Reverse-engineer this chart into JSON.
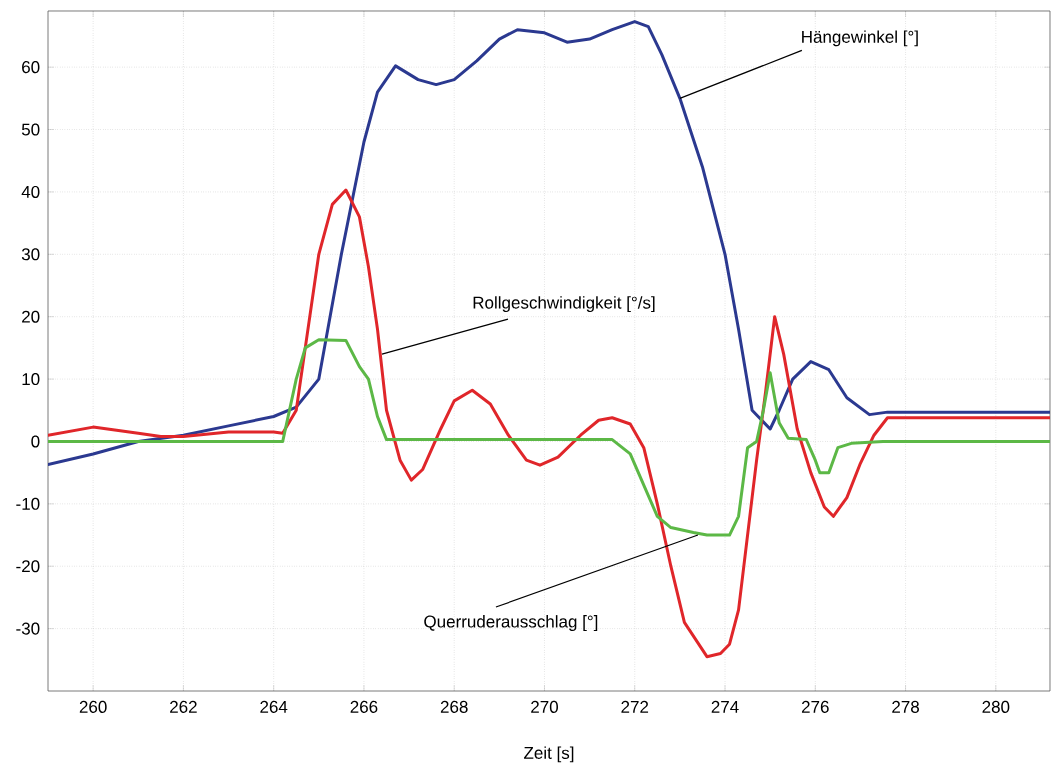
{
  "chart_data": {
    "type": "line",
    "xlabel": "Zeit [s]",
    "xlim": [
      259,
      281.2
    ],
    "ylim": [
      -40,
      69
    ],
    "xticks": [
      260,
      262,
      264,
      266,
      268,
      270,
      272,
      274,
      276,
      278,
      280
    ],
    "yticks": [
      -30,
      -20,
      -10,
      0,
      10,
      20,
      30,
      40,
      50,
      60
    ],
    "grid": true,
    "marker": "none",
    "line_style": "solid",
    "annotations": [
      {
        "text": "Hängewinkel [°]",
        "x": 273,
        "y": 55
      },
      {
        "text": "Rollgeschwindigkeit [°/s]",
        "x": 266.4,
        "y": 14
      },
      {
        "text": "Querruderausschlag [°]",
        "x": 273.4,
        "y": -15
      }
    ],
    "series": [
      {
        "color": "#2b3990",
        "x": [
          259,
          260,
          261,
          262,
          263,
          264,
          264.5,
          265,
          265.5,
          266,
          266.3,
          266.7,
          267.2,
          267.6,
          268,
          268.5,
          269,
          269.4,
          270,
          270.5,
          271,
          271.5,
          272,
          272.3,
          272.6,
          273,
          273.5,
          274,
          274.3,
          274.6,
          275,
          275.2,
          275.5,
          275.9,
          276.3,
          276.7,
          277.2,
          277.6,
          281.2
        ],
        "values": [
          -3.7,
          -2,
          0,
          1,
          2.5,
          4,
          5.5,
          10,
          30,
          48,
          56,
          60.2,
          58,
          57.2,
          58,
          61,
          64.5,
          66,
          65.5,
          64,
          64.5,
          66,
          67.3,
          66.5,
          62,
          55,
          44,
          30,
          18,
          5,
          2,
          5,
          10,
          12.8,
          11.5,
          7,
          4.3,
          4.7,
          4.7
        ]
      },
      {
        "color": "#e0262a",
        "x": [
          259,
          260,
          261,
          261.5,
          262,
          263,
          264,
          264.2,
          264.5,
          264.7,
          265,
          265.3,
          265.6,
          265.9,
          266.1,
          266.3,
          266.5,
          266.8,
          267.05,
          267.3,
          267.7,
          268,
          268.4,
          268.8,
          269.2,
          269.6,
          269.9,
          270.3,
          270.8,
          271.2,
          271.5,
          271.9,
          272.2,
          272.5,
          272.8,
          273.1,
          273.6,
          273.9,
          274.1,
          274.3,
          274.5,
          274.7,
          274.9,
          275.1,
          275.3,
          275.6,
          275.9,
          276.2,
          276.4,
          276.7,
          277,
          277.3,
          277.6,
          281.2
        ],
        "values": [
          1,
          2.3,
          1.3,
          0.8,
          0.8,
          1.5,
          1.5,
          1.3,
          5,
          15,
          30,
          38,
          40.3,
          36,
          28,
          18,
          5,
          -3,
          -6.2,
          -4.5,
          2,
          6.5,
          8.2,
          6,
          1,
          -3,
          -3.8,
          -2.5,
          1,
          3.4,
          3.8,
          2.8,
          -1,
          -10,
          -20,
          -29,
          -34.5,
          -34,
          -32.5,
          -27,
          -15,
          -3,
          8,
          20,
          14,
          2,
          -5,
          -10.5,
          -12,
          -9,
          -3.5,
          1,
          3.8,
          3.8
        ]
      },
      {
        "color": "#5cb846",
        "x": [
          259,
          264.2,
          264.5,
          264.7,
          265,
          265.6,
          265.9,
          266.1,
          266.3,
          266.5,
          271.5,
          271.9,
          272.2,
          272.5,
          272.8,
          273.3,
          273.6,
          274.1,
          274.3,
          274.5,
          274.7,
          274.85,
          275,
          275.2,
          275.4,
          275.8,
          276,
          276.1,
          276.3,
          276.5,
          276.8,
          277.5,
          281.2
        ],
        "values": [
          0,
          0,
          10,
          15,
          16.3,
          16.2,
          12,
          10,
          4,
          0.3,
          0.3,
          -2,
          -7,
          -12,
          -13.8,
          -14.6,
          -15,
          -15,
          -12,
          -1,
          0,
          5,
          11,
          3,
          0.5,
          0.3,
          -3,
          -5,
          -5,
          -1,
          -0.3,
          0,
          0
        ]
      }
    ]
  }
}
